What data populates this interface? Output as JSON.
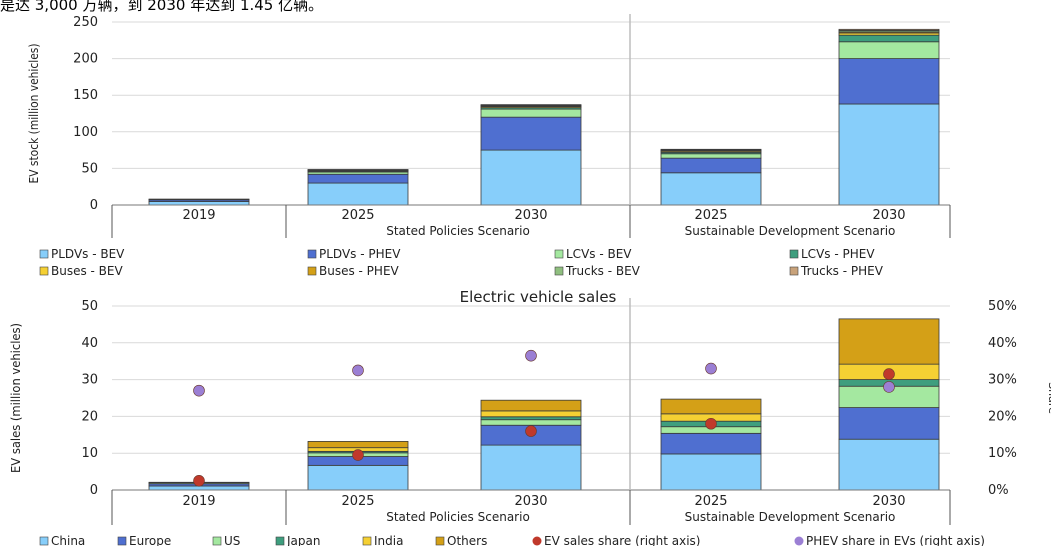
{
  "header_text": "是达 3,000 万辆，到 2030 年达到 1.45 亿辆。",
  "chart_data": [
    {
      "type": "bar",
      "stacked": true,
      "title": "",
      "ylabel": "EV stock (million vehicles)",
      "ylim": [
        0,
        250
      ],
      "yticks": [
        0,
        50,
        100,
        150,
        200,
        250
      ],
      "groups": [
        {
          "label": "",
          "categories": [
            "2019"
          ]
        },
        {
          "label": "Stated Policies Scenario",
          "categories": [
            "2025",
            "2030"
          ]
        },
        {
          "label": "Sustainable Development Scenario",
          "categories": [
            "2025",
            "2030"
          ]
        }
      ],
      "categories": [
        "2019",
        "2025",
        "2030",
        "2025",
        "2030"
      ],
      "series": [
        {
          "name": "PLDVs - BEV",
          "color": "#87CEFA",
          "values": [
            4.8,
            30,
            75,
            44,
            138
          ]
        },
        {
          "name": "PLDVs - PHEV",
          "color": "#4F6FD0",
          "values": [
            2.4,
            12,
            45,
            20,
            62
          ]
        },
        {
          "name": "LCVs - BEV",
          "color": "#A4E8A0",
          "values": [
            0.4,
            3,
            11,
            6,
            23
          ]
        },
        {
          "name": "LCVs - PHEV",
          "color": "#3E9E7E",
          "values": [
            0,
            1,
            2,
            2,
            9
          ]
        },
        {
          "name": "Buses - BEV",
          "color": "#F5D033",
          "values": [
            0.5,
            1,
            1.5,
            1.5,
            3
          ]
        },
        {
          "name": "Buses - PHEV",
          "color": "#D4A017",
          "values": [
            0,
            0.5,
            0.8,
            0.8,
            1.5
          ]
        },
        {
          "name": "Trucks - BEV",
          "color": "#8FBF7F",
          "values": [
            0,
            0.5,
            1,
            1,
            2
          ]
        },
        {
          "name": "Trucks - PHEV",
          "color": "#C8A27A",
          "values": [
            0,
            0.5,
            0.8,
            0.8,
            1.5
          ]
        }
      ],
      "legend_position": "bottom"
    },
    {
      "type": "bar",
      "stacked": true,
      "title": "Electric vehicle sales",
      "ylabel": "EV sales (million vehicles)",
      "ylabel_right": "Share",
      "ylim": [
        0,
        50
      ],
      "yticks": [
        0,
        10,
        20,
        30,
        40,
        50
      ],
      "ylim_right": [
        0,
        50
      ],
      "yticks_right": [
        "0%",
        "10%",
        "20%",
        "30%",
        "40%",
        "50%"
      ],
      "groups": [
        {
          "label": "",
          "categories": [
            "2019"
          ]
        },
        {
          "label": "Stated Policies Scenario",
          "categories": [
            "2025",
            "2030"
          ]
        },
        {
          "label": "Sustainable Development Scenario",
          "categories": [
            "2025",
            "2030"
          ]
        }
      ],
      "categories": [
        "2019",
        "2025",
        "2030",
        "2025",
        "2030"
      ],
      "series": [
        {
          "name": "China",
          "color": "#87CEFA",
          "values": [
            1.1,
            6.7,
            12.2,
            9.8,
            13.8
          ]
        },
        {
          "name": "Europe",
          "color": "#4F6FD0",
          "values": [
            0.6,
            2.4,
            5.4,
            5.6,
            8.6
          ]
        },
        {
          "name": "US",
          "color": "#A4E8A0",
          "values": [
            0.3,
            1.0,
            1.5,
            1.8,
            5.8
          ]
        },
        {
          "name": "Japan",
          "color": "#3E9E7E",
          "values": [
            0.0,
            0.4,
            0.8,
            1.5,
            1.8
          ]
        },
        {
          "name": "India",
          "color": "#F5D033",
          "values": [
            0.0,
            1.0,
            1.6,
            2.0,
            4.2
          ]
        },
        {
          "name": "Others",
          "color": "#D4A017",
          "values": [
            0.1,
            1.7,
            2.9,
            4.0,
            12.3
          ]
        }
      ],
      "points": [
        {
          "name": "EV sales share (right axis)",
          "color": "#C0392B",
          "values": [
            2.5,
            9.5,
            16,
            18,
            31.5
          ]
        },
        {
          "name": "PHEV share in EVs (right axis)",
          "color": "#9B7FD4",
          "values": [
            27,
            32.5,
            36.5,
            33,
            28
          ]
        }
      ],
      "legend_position": "bottom"
    }
  ]
}
